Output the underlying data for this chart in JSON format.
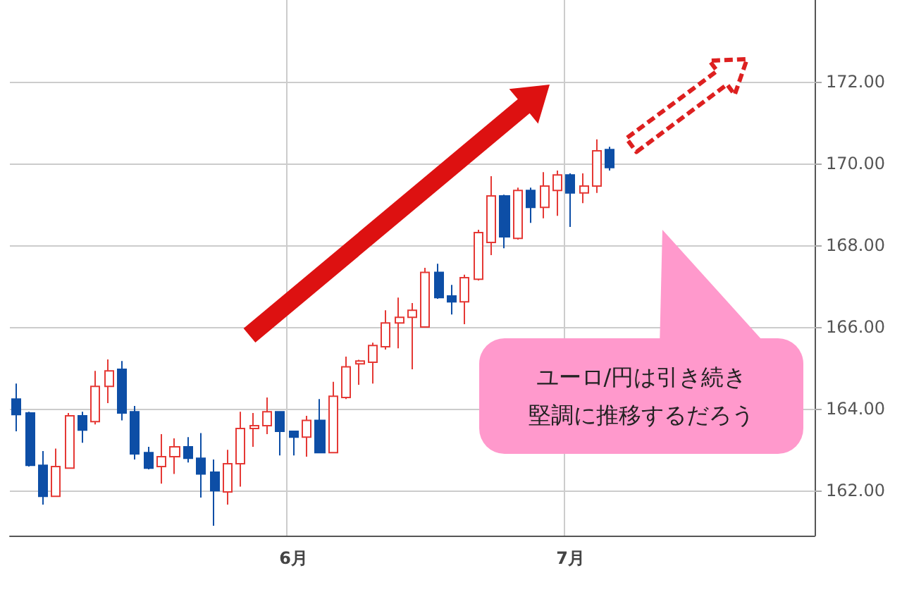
{
  "chart_data": {
    "type": "candlestick",
    "categories": [
      null,
      null,
      null,
      null,
      null,
      null,
      null,
      null,
      null,
      null,
      null,
      null,
      null,
      null,
      null,
      null,
      null,
      null,
      null,
      null,
      null,
      "6月",
      null,
      null,
      null,
      null,
      null,
      null,
      null,
      null,
      null,
      null,
      null,
      null,
      null,
      null,
      null,
      null,
      null,
      null,
      null,
      null,
      "7月",
      null,
      null,
      null,
      null,
      null,
      null,
      null,
      null,
      null,
      null,
      null,
      null,
      null,
      null,
      null,
      null,
      null,
      null
    ],
    "ohlc": [
      [
        164.24,
        164.62,
        163.45,
        163.86
      ],
      [
        163.9,
        163.93,
        162.59,
        162.62
      ],
      [
        162.62,
        162.97,
        161.66,
        161.86
      ],
      [
        161.86,
        163.03,
        161.86,
        162.59
      ],
      [
        162.55,
        163.9,
        162.55,
        163.83
      ],
      [
        163.83,
        163.93,
        163.17,
        163.48
      ],
      [
        163.69,
        164.93,
        163.62,
        164.55
      ],
      [
        164.55,
        165.21,
        164.14,
        164.93
      ],
      [
        164.97,
        165.17,
        163.72,
        163.9
      ],
      [
        163.93,
        164.07,
        162.76,
        162.9
      ],
      [
        162.93,
        163.07,
        162.52,
        162.55
      ],
      [
        162.59,
        163.38,
        162.17,
        162.83
      ],
      [
        162.83,
        163.28,
        162.41,
        163.07
      ],
      [
        163.07,
        163.31,
        162.69,
        162.79
      ],
      [
        162.79,
        163.41,
        161.83,
        162.41
      ],
      [
        162.45,
        162.76,
        161.14,
        162.0
      ],
      [
        161.97,
        163.0,
        161.66,
        162.66
      ],
      [
        162.66,
        163.93,
        162.1,
        163.52
      ],
      [
        163.52,
        163.9,
        163.07,
        163.59
      ],
      [
        163.59,
        164.28,
        163.38,
        163.93
      ],
      [
        163.93,
        163.93,
        162.86,
        163.45
      ],
      [
        163.45,
        163.45,
        162.86,
        163.31
      ],
      [
        163.31,
        163.83,
        162.83,
        163.72
      ],
      [
        163.72,
        164.24,
        162.93,
        162.93
      ],
      [
        162.93,
        164.66,
        162.93,
        164.31
      ],
      [
        164.28,
        165.28,
        164.24,
        165.03
      ],
      [
        165.1,
        165.2,
        164.59,
        165.17
      ],
      [
        165.14,
        165.62,
        164.62,
        165.55
      ],
      [
        165.52,
        166.41,
        165.45,
        166.1
      ],
      [
        166.1,
        166.72,
        165.48,
        166.24
      ],
      [
        166.24,
        166.59,
        164.97,
        166.41
      ],
      [
        166.0,
        167.45,
        166.0,
        167.34
      ],
      [
        167.34,
        167.55,
        166.69,
        166.72
      ],
      [
        166.76,
        167.03,
        166.31,
        166.62
      ],
      [
        166.62,
        167.28,
        166.07,
        167.21
      ],
      [
        167.17,
        168.38,
        167.14,
        168.31
      ],
      [
        168.07,
        169.69,
        167.76,
        169.21
      ],
      [
        169.21,
        169.24,
        167.93,
        168.21
      ],
      [
        168.17,
        169.41,
        168.14,
        169.34
      ],
      [
        169.34,
        169.41,
        168.55,
        168.93
      ],
      [
        168.93,
        169.79,
        168.66,
        169.45
      ],
      [
        169.34,
        169.83,
        168.72,
        169.72
      ],
      [
        169.72,
        169.76,
        168.45,
        169.28
      ],
      [
        169.28,
        169.76,
        169.03,
        169.45
      ],
      [
        169.45,
        170.59,
        169.28,
        170.31
      ],
      [
        170.34,
        170.41,
        169.83,
        169.9
      ],
      null,
      null,
      null,
      null,
      null,
      null,
      null,
      null,
      null,
      null,
      null,
      null,
      null,
      null,
      null
    ],
    "colors": [
      "#0d4ea6",
      "#0d4ea6",
      "#0d4ea6",
      "#e53935",
      "#e53935",
      "#0d4ea6",
      "#e53935",
      "#e53935",
      "#0d4ea6",
      "#0d4ea6",
      "#0d4ea6",
      "#e53935",
      "#e53935",
      "#0d4ea6",
      "#0d4ea6",
      "#0d4ea6",
      "#e53935",
      "#e53935",
      "#e53935",
      "#e53935",
      "#0d4ea6",
      "#0d4ea6",
      "#e53935",
      "#0d4ea6",
      "#e53935",
      "#e53935",
      "#e53935",
      "#e53935",
      "#e53935",
      "#e53935",
      "#e53935",
      "#e53935",
      "#0d4ea6",
      "#0d4ea6",
      "#e53935",
      "#e53935",
      "#e53935",
      "#0d4ea6",
      "#e53935",
      "#0d4ea6",
      "#e53935",
      "#e53935",
      "#0d4ea6",
      "#e53935",
      "#e53935",
      "#0d4ea6",
      null,
      null,
      null,
      null,
      null,
      null,
      null,
      null,
      null,
      null,
      null,
      null,
      null,
      null,
      null
    ],
    "ylim": [
      160.9,
      174.0
    ],
    "yticks": [
      {
        "value": 162,
        "label": "162.00"
      },
      {
        "value": 164,
        "label": "164.00"
      },
      {
        "value": 166,
        "label": "166.00"
      },
      {
        "value": 168,
        "label": "168.00"
      },
      {
        "value": 170,
        "label": "170.00"
      },
      {
        "value": 172,
        "label": "172.00"
      }
    ],
    "grid": true,
    "annotations": [
      "ユーロ/円は引き続き",
      "堅調に推移するだろう"
    ]
  }
}
